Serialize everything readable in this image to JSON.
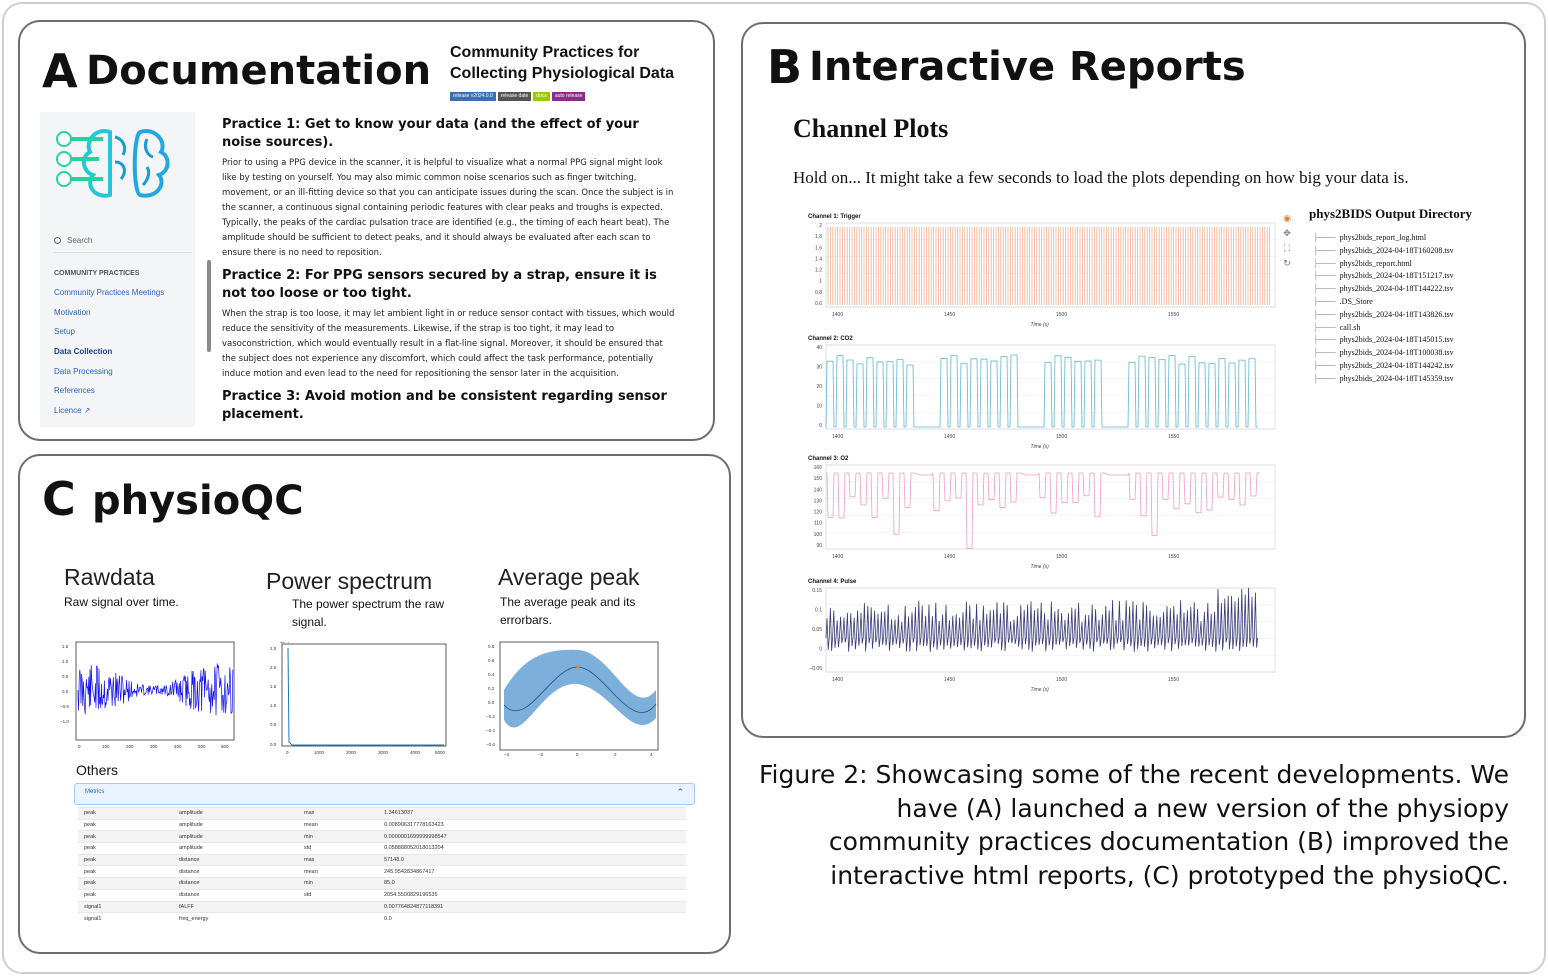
{
  "panels": {
    "a": {
      "letter": "A",
      "title": "Documentation",
      "header_title": "Community Practices for Collecting Physiological Data",
      "badges": [
        {
          "label": "release v2024.0.0",
          "color": "#3a6fb0"
        },
        {
          "label": "release date",
          "color": "#555555"
        },
        {
          "label": "docs",
          "color": "#97ca00"
        },
        {
          "label": "auto release",
          "color": "#8b2c8c"
        }
      ],
      "sidebar": {
        "search_placeholder": "Search",
        "section_heading": "COMMUNITY PRACTICES",
        "items": [
          {
            "label": "Community Practices Meetings",
            "active": false
          },
          {
            "label": "Motivation",
            "active": false
          },
          {
            "label": "Setup",
            "active": false
          },
          {
            "label": "Data Collection",
            "active": true
          },
          {
            "label": "Data Processing",
            "active": false
          },
          {
            "label": "References",
            "active": false
          },
          {
            "label": "Licence ↗",
            "active": false
          }
        ]
      },
      "practices": [
        {
          "title": "Practice 1: Get to know your data (and the effect of your noise sources).",
          "body": "Prior to using a PPG device in the scanner, it is helpful to visualize what a normal PPG signal might look like by testing on yourself. You may also mimic common noise scenarios such as finger twitching, movement, or an ill-fitting device so that you can anticipate issues during the scan. Once the subject is in the scanner, a continuous signal containing periodic features with clear peaks and troughs is expected. Typically, the peaks of the cardiac pulsation trace are identified (e.g., the timing of each heart beat). The amplitude should be sufficient to detect peaks, and it should always be evaluated after each scan to ensure there is no need to reposition."
        },
        {
          "title": "Practice 2: For PPG sensors secured by a strap, ensure it is not too loose or too tight.",
          "body": "When the strap is too loose, it may let ambient light in or reduce sensor contact with tissues, which would reduce the sensitivity of the measurements. Likewise, if the strap is too tight, it may lead to vasoconstriction, which would eventually result in a flat-line signal. Moreover, it should be ensured that the subject does not experience any discomfort, which could affect the task performance, potentially induce motion and even lead to the need for repositioning the sensor later in the acquisition."
        },
        {
          "title": "Practice 3: Avoid motion and be consistent regarding sensor placement.",
          "body": ""
        }
      ]
    },
    "b": {
      "letter": "B",
      "title": "Interactive Reports",
      "heading": "Channel Plots",
      "note": "Hold on... It might take a few seconds to load the plots depending on how big your data is.",
      "channels": [
        {
          "label": "Channel 1: Trigger",
          "yticks": [
            "2",
            "1.8",
            "1.6",
            "1.4",
            "1.2",
            "1",
            "0.8",
            "0.6"
          ],
          "color": "#f4a582"
        },
        {
          "label": "Channel 2: CO2",
          "yticks": [
            "40",
            "30",
            "20",
            "10",
            "0"
          ],
          "color": "#5fb8d0"
        },
        {
          "label": "Channel 3: O2",
          "yticks": [
            "160",
            "150",
            "140",
            "130",
            "120",
            "110",
            "100",
            "90"
          ],
          "color": "#f29bc0"
        },
        {
          "label": "Channel 4: Pulse",
          "yticks": [
            "0.15",
            "0.1",
            "0.05",
            "0",
            "−0.05"
          ],
          "color": "#3b3b7a"
        }
      ],
      "xticks": [
        "1400",
        "1450",
        "1500",
        "1550"
      ],
      "xlabel": "Time (s)",
      "directory_title": "phys2BIDS Output Directory",
      "files": [
        "phys2bids_report_log.html",
        "phys2bids_2024-04-18T160208.tsv",
        "phys2bids_report.html",
        "phys2bids_2024-04-18T151217.tsv",
        "phys2bids_2024-04-18T144222.tsv",
        ".DS_Store",
        "phys2bids_2024-04-18T143826.tsv",
        "call.sh",
        "phys2bids_2024-04-18T145015.tsv",
        "phys2bids_2024-04-18T100038.tsv",
        "phys2bids_2024-04-18T144242.tsv",
        "phys2bids_2024-04-18T145359.tsv"
      ]
    },
    "c": {
      "letter": "C",
      "title": "physioQC",
      "sections": [
        {
          "heading": "Rawdata",
          "desc": "Raw signal over time."
        },
        {
          "heading": "Power spectrum",
          "desc": "The power spectrum  the raw signal."
        },
        {
          "heading": "Average peak",
          "desc": "The average peak and its errorbars."
        }
      ],
      "others_label": "Others",
      "metrics_label": "Metrics",
      "metrics": [
        [
          "peak",
          "amplitude",
          "max",
          "1.34613037"
        ],
        [
          "peak",
          "amplitude",
          "mean",
          "0.008906317778163423"
        ],
        [
          "peak",
          "amplitude",
          "min",
          "0.0000001699999998547"
        ],
        [
          "peak",
          "amplitude",
          "std",
          "0.058888052018013204"
        ],
        [
          "peak",
          "distance",
          "max",
          "57148.0"
        ],
        [
          "peak",
          "distance",
          "mean",
          "245.9542834867417"
        ],
        [
          "peak",
          "distance",
          "min",
          "85.0"
        ],
        [
          "peak",
          "distance",
          "std",
          "2054.5500829196535"
        ],
        [
          "signal1",
          "fALFF",
          "",
          "0.007764824877118391"
        ],
        [
          "signal1",
          "freq_energy",
          "",
          "0.0"
        ]
      ]
    }
  },
  "caption": "Figure 2: Showcasing some of the recent developments. We have (A) launched a new version of the physiopy community practices documentation (B) improved the interactive html reports, (C) prototyped the physioQC."
}
